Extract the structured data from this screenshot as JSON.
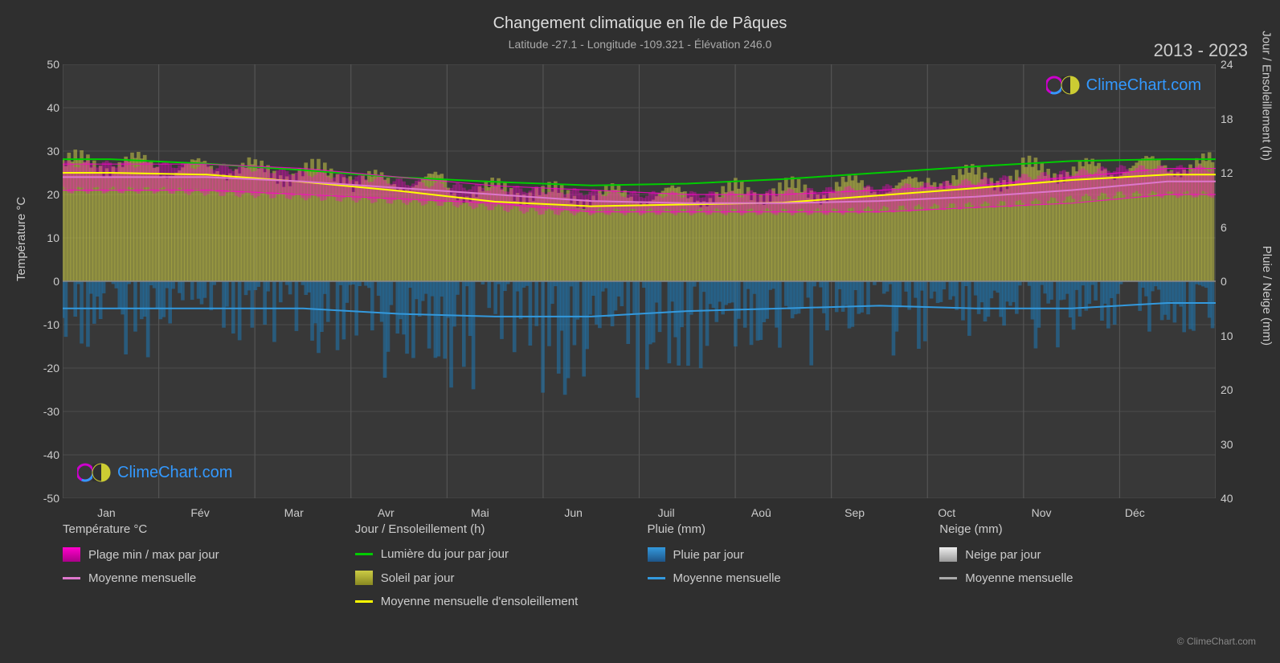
{
  "title": "Changement climatique en île de Pâques",
  "subtitle": "Latitude -27.1 - Longitude -109.321 - Élévation 246.0",
  "year_range": "2013 - 2023",
  "copyright": "© ClimeChart.com",
  "logo_text": "ClimeChart.com",
  "logo_color": "#3399ff",
  "colors": {
    "background": "#2f2f2f",
    "plot_bg": "#383838",
    "grid": "#555555",
    "text": "#cccccc",
    "temp_range": "#ff00cc",
    "temp_avg": "#dd77cc",
    "daylight": "#00cc00",
    "sun_fill": "#bbbb44",
    "sun_avg": "#ffff00",
    "rain_fill": "#1e78b4",
    "rain_avg": "#3399dd",
    "snow_fill": "#dddddd",
    "snow_avg": "#aaaaaa"
  },
  "months": [
    "Jan",
    "Fév",
    "Mar",
    "Avr",
    "Mai",
    "Jun",
    "Juil",
    "Aoû",
    "Sep",
    "Oct",
    "Nov",
    "Déc"
  ],
  "y_axis_left": {
    "label": "Température °C",
    "min": -50,
    "max": 50,
    "ticks": [
      50,
      40,
      30,
      20,
      10,
      0,
      -10,
      -20,
      -30,
      -40,
      -50
    ]
  },
  "y_axis_right_top": {
    "label": "Jour / Ensoleillement (h)",
    "min": 0,
    "max": 24,
    "ticks": [
      24,
      18,
      12,
      6,
      0
    ]
  },
  "y_axis_right_bottom": {
    "label": "Pluie / Neige (mm)",
    "min": 0,
    "max": 40,
    "ticks": [
      0,
      10,
      20,
      30,
      40
    ]
  },
  "series": {
    "daylight": [
      13.5,
      13.0,
      12.3,
      11.5,
      11.0,
      10.6,
      10.8,
      11.3,
      12.0,
      12.7,
      13.3,
      13.5
    ],
    "sun_avg": [
      12.0,
      11.8,
      11.0,
      10.0,
      8.8,
      8.3,
      8.5,
      8.7,
      9.5,
      10.3,
      11.2,
      11.8
    ],
    "sun_fill_max": [
      13.0,
      12.5,
      12.0,
      11.0,
      10.0,
      9.5,
      9.5,
      10.0,
      10.5,
      11.5,
      12.3,
      12.8
    ],
    "temp_max": [
      27,
      27,
      26,
      24,
      22,
      21,
      20,
      20,
      21,
      22,
      24,
      26
    ],
    "temp_min": [
      21,
      21,
      20,
      19,
      18,
      16,
      16,
      16,
      16,
      17,
      18,
      20
    ],
    "temp_avg": [
      24,
      24,
      23,
      21.5,
      20,
      18.5,
      18,
      18,
      18.5,
      19.5,
      21,
      23
    ],
    "rain_avg": [
      5,
      5,
      5,
      6,
      6.5,
      6.5,
      5.5,
      5,
      4.5,
      5,
      5,
      4
    ],
    "rain_max": [
      15,
      12,
      14,
      18,
      22,
      25,
      18,
      16,
      14,
      12,
      13,
      10
    ]
  },
  "legend": {
    "temp_header": "Température °C",
    "temp_range": "Plage min / max par jour",
    "temp_avg": "Moyenne mensuelle",
    "day_header": "Jour / Ensoleillement (h)",
    "daylight": "Lumière du jour par jour",
    "sun": "Soleil par jour",
    "sun_avg": "Moyenne mensuelle d'ensoleillement",
    "rain_header": "Pluie (mm)",
    "rain": "Pluie par jour",
    "rain_avg": "Moyenne mensuelle",
    "snow_header": "Neige (mm)",
    "snow": "Neige par jour",
    "snow_avg": "Moyenne mensuelle"
  }
}
